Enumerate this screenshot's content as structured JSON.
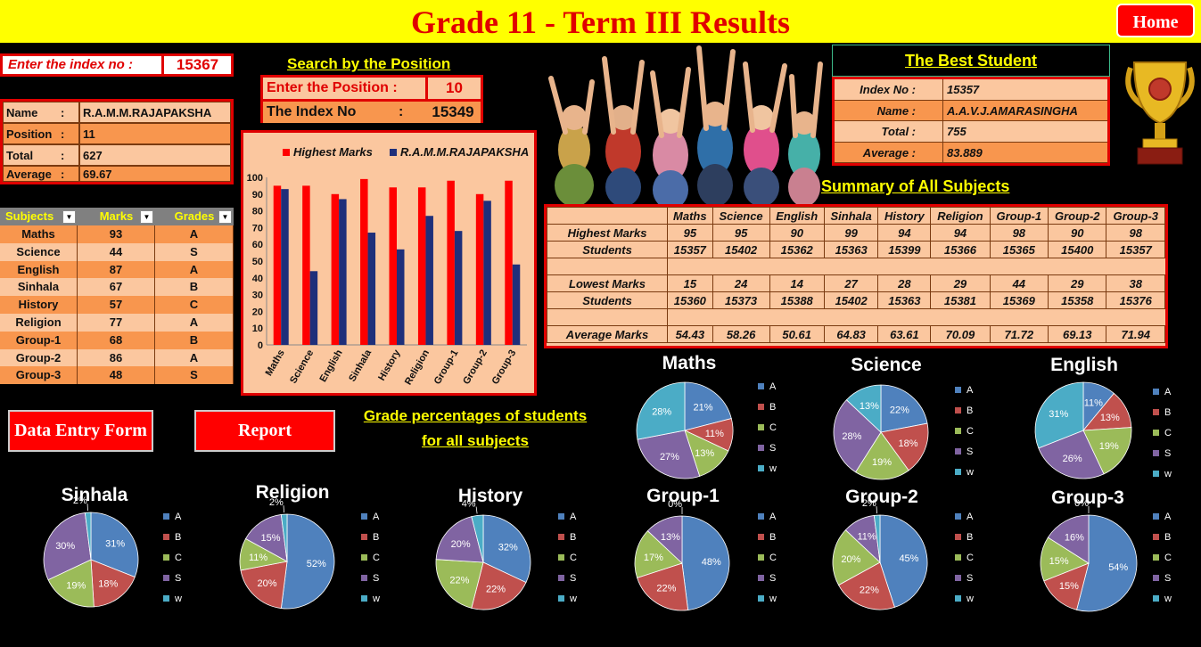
{
  "title": "Grade 11 - Term III Results",
  "home_label": "Home",
  "index_entry": {
    "label": "Enter the index no :",
    "value": "15367"
  },
  "search": {
    "heading": "Search by the Position",
    "position_label": "Enter the Position   :",
    "position_value": "10",
    "index_label": "The Index No",
    "index_colon": ":",
    "index_value": "15349"
  },
  "student": {
    "rows": [
      {
        "label": "Name",
        "colon": ":",
        "value": "R.A.M.M.RAJAPAKSHA"
      },
      {
        "label": "Position",
        "colon": ":",
        "value": "11"
      },
      {
        "label": "Total",
        "colon": ":",
        "value": "627"
      },
      {
        "label": "Average",
        "colon": ":",
        "value": "69.67"
      }
    ]
  },
  "marks_table": {
    "headers": [
      "Subjects",
      "Marks",
      "Grades"
    ],
    "rows": [
      [
        "Maths",
        "93",
        "A"
      ],
      [
        "Science",
        "44",
        "S"
      ],
      [
        "English",
        "87",
        "A"
      ],
      [
        "Sinhala",
        "67",
        "B"
      ],
      [
        "History",
        "57",
        "C"
      ],
      [
        "Religion",
        "77",
        "A"
      ],
      [
        "Group-1",
        "68",
        "B"
      ],
      [
        "Group-2",
        "86",
        "A"
      ],
      [
        "Group-3",
        "48",
        "S"
      ]
    ]
  },
  "best_student": {
    "heading": "The Best Student",
    "rows": [
      {
        "label": "Index No :",
        "value": "15357"
      },
      {
        "label": "Name :",
        "value": "A.A.V.J.AMARASINGHA"
      },
      {
        "label": "Total :",
        "value": "755"
      },
      {
        "label": "Average :",
        "value": "83.889"
      }
    ]
  },
  "summary": {
    "heading": "Summary of All Subjects",
    "columns": [
      "Maths",
      "Science",
      "English",
      "Sinhala",
      "History",
      "Religion",
      "Group-1",
      "Group-2",
      "Group-3"
    ],
    "highest_label": "Highest Marks",
    "highest": [
      "95",
      "95",
      "90",
      "99",
      "94",
      "94",
      "98",
      "90",
      "98"
    ],
    "students_label": "Students",
    "highest_students": [
      "15357",
      "15402",
      "15362",
      "15363",
      "15399",
      "15366",
      "15365",
      "15400",
      "15357"
    ],
    "lowest_label": "Lowest Marks",
    "lowest": [
      "15",
      "24",
      "14",
      "27",
      "28",
      "29",
      "44",
      "29",
      "38"
    ],
    "lowest_students": [
      "15360",
      "15373",
      "15388",
      "15402",
      "15363",
      "15381",
      "15369",
      "15358",
      "15376"
    ],
    "average_label": "Average Marks",
    "average": [
      "54.43",
      "58.26",
      "50.61",
      "64.83",
      "63.61",
      "70.09",
      "71.72",
      "69.13",
      "71.94"
    ]
  },
  "buttons": {
    "data_entry": "Data Entry Form",
    "report": "Report"
  },
  "grade_heading": {
    "line1": "Grade percentages of students",
    "line2": "for all subjects"
  },
  "colors": {
    "A": "#4f81bd",
    "B": "#c0504d",
    "C": "#9bbb59",
    "S": "#8064a2",
    "w": "#4bacc6",
    "highest": "#ff0000",
    "student": "#1f2f7a"
  },
  "grade_keys": [
    "A",
    "B",
    "C",
    "S",
    "w"
  ],
  "chart_data": [
    {
      "type": "bar",
      "categories": [
        "Maths",
        "Science",
        "English",
        "Sinhala",
        "History",
        "Religion",
        "Group-1",
        "Group-2",
        "Group-3"
      ],
      "series": [
        {
          "name": "Highest Marks",
          "values": [
            95,
            95,
            90,
            99,
            94,
            94,
            98,
            90,
            98
          ]
        },
        {
          "name": "R.A.M.M.RAJAPAKSHA",
          "values": [
            93,
            44,
            87,
            67,
            57,
            77,
            68,
            86,
            48
          ]
        }
      ],
      "ylim": [
        0,
        100
      ],
      "yticks": [
        0,
        10,
        20,
        30,
        40,
        50,
        60,
        70,
        80,
        90,
        100
      ],
      "grid": false,
      "legend": "top"
    },
    {
      "type": "pie",
      "title": "Maths",
      "labels": [
        "A",
        "B",
        "C",
        "S",
        "w"
      ],
      "values": [
        21,
        11,
        13,
        27,
        28
      ],
      "value_labels": [
        "21%",
        "11%",
        "13%",
        "27%",
        "28%"
      ]
    },
    {
      "type": "pie",
      "title": "Science",
      "labels": [
        "A",
        "B",
        "C",
        "S",
        "w"
      ],
      "values": [
        22,
        18,
        19,
        28,
        13
      ],
      "value_labels": [
        "22%",
        "18%",
        "19%",
        "28%",
        "13%"
      ]
    },
    {
      "type": "pie",
      "title": "English",
      "labels": [
        "A",
        "B",
        "C",
        "S",
        "w"
      ],
      "values": [
        11,
        13,
        19,
        26,
        31
      ],
      "value_labels": [
        "11%",
        "13%",
        "19%",
        "26%",
        "31%"
      ]
    },
    {
      "type": "pie",
      "title": "Sinhala",
      "labels": [
        "A",
        "B",
        "C",
        "S",
        "w"
      ],
      "values": [
        31,
        18,
        19,
        30,
        2
      ],
      "value_labels": [
        "31%",
        "18%",
        "19%",
        "30%",
        "2%"
      ]
    },
    {
      "type": "pie",
      "title": "Religion",
      "labels": [
        "A",
        "B",
        "C",
        "S",
        "w"
      ],
      "values": [
        52,
        20,
        11,
        15,
        2
      ],
      "value_labels": [
        "52%",
        "20%",
        "11%",
        "15%",
        "2%"
      ]
    },
    {
      "type": "pie",
      "title": "History",
      "labels": [
        "A",
        "B",
        "C",
        "S",
        "w"
      ],
      "values": [
        32,
        22,
        22,
        20,
        4
      ],
      "value_labels": [
        "32%",
        "22%",
        "22%",
        "20%",
        "4%"
      ]
    },
    {
      "type": "pie",
      "title": "Group-1",
      "labels": [
        "A",
        "B",
        "C",
        "S",
        "w"
      ],
      "values": [
        48,
        22,
        17,
        13,
        0
      ],
      "value_labels": [
        "48%",
        "22%",
        "17%",
        "13%",
        "0%"
      ]
    },
    {
      "type": "pie",
      "title": "Group-2",
      "labels": [
        "A",
        "B",
        "C",
        "S",
        "w"
      ],
      "values": [
        45,
        22,
        20,
        11,
        2
      ],
      "value_labels": [
        "45%",
        "22%",
        "20%",
        "11%",
        "2%"
      ]
    },
    {
      "type": "pie",
      "title": "Group-3",
      "labels": [
        "A",
        "B",
        "C",
        "S",
        "w"
      ],
      "values": [
        54,
        15,
        15,
        16,
        0
      ],
      "value_labels": [
        "54%",
        "15%",
        "15%",
        "16%",
        "0%"
      ]
    }
  ]
}
